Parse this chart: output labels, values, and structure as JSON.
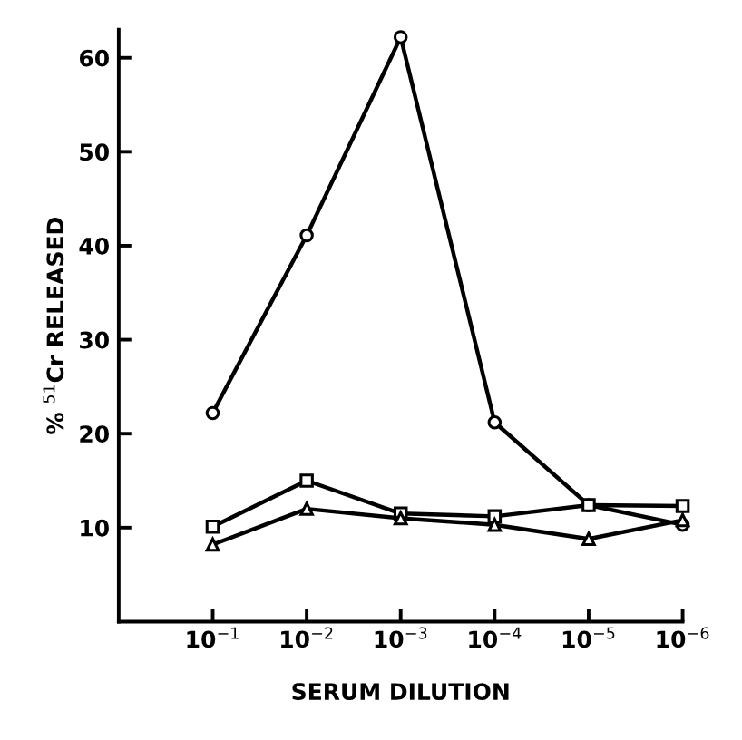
{
  "chart_data": {
    "type": "line",
    "xlabel": "SERUM DILUTION",
    "ylabel": "% $^{51}$Cr RELEASED",
    "log": "x",
    "x": [
      0.1,
      0.01,
      0.001,
      0.0001,
      1e-05,
      1e-06
    ],
    "xlim": [
      1,
      1e-06
    ],
    "xticks": [
      {
        "value": 0.1,
        "label": "10$^{−1}$"
      },
      {
        "value": 0.01,
        "label": "10$^{−2}$"
      },
      {
        "value": 0.001,
        "label": "10$^{−3}$"
      },
      {
        "value": 0.0001,
        "label": "10$^{−4}$"
      },
      {
        "value": 1e-05,
        "label": "10$^{−5}$"
      },
      {
        "value": 1e-06,
        "label": "10$^{−6}$"
      }
    ],
    "ylim": [
      0,
      63
    ],
    "yticks": [
      10,
      20,
      30,
      40,
      50,
      60
    ],
    "grid": false,
    "series": [
      {
        "color": "#000000",
        "marker": "circle",
        "values": [
          22.2,
          41.1,
          62.2,
          21.2,
          12.4,
          10.3
        ]
      },
      {
        "color": "#000000",
        "marker": "square",
        "values": [
          10.1,
          15.0,
          11.5,
          11.2,
          12.4,
          12.3
        ]
      },
      {
        "color": "#000000",
        "marker": "triangle",
        "values": [
          8.2,
          12.0,
          11.0,
          10.3,
          8.8,
          10.8
        ]
      }
    ]
  }
}
